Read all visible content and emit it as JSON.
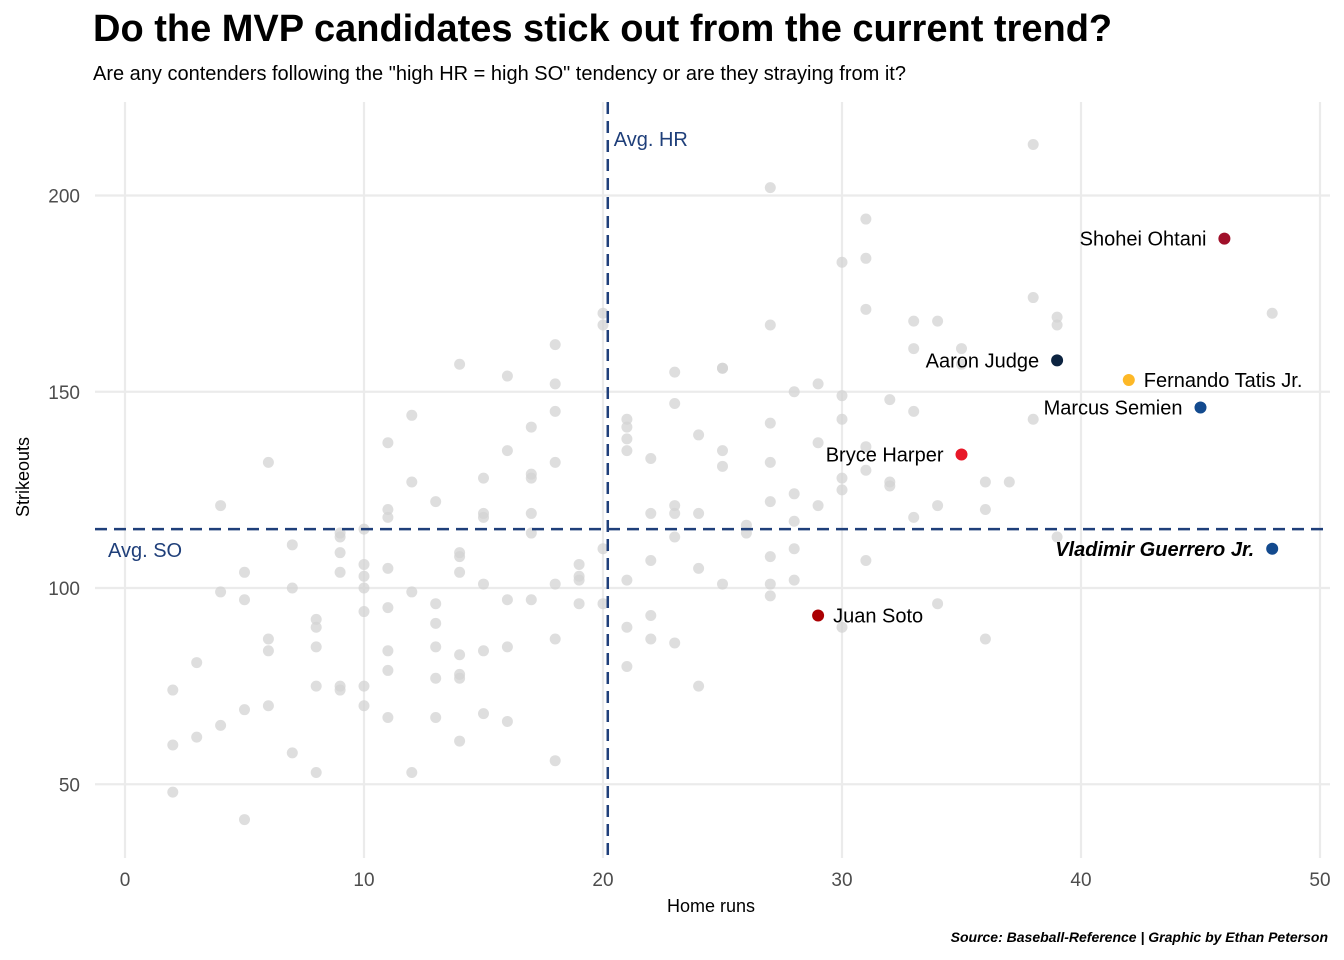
{
  "chart_data": {
    "type": "scatter",
    "title": "Do the MVP candidates stick out from the current trend?",
    "subtitle": "Are any contenders following the \"high HR = high SO\" tendency or are they straying from it?",
    "xlabel": "Home runs",
    "ylabel": "Strikeouts",
    "xlim": [
      0,
      50
    ],
    "ylim": [
      35,
      222
    ],
    "x_ticks": [
      0,
      10,
      20,
      30,
      40,
      50
    ],
    "y_ticks": [
      50,
      100,
      150,
      200
    ],
    "grid": true,
    "caption": "Source: Baseball-Reference | Graphic by Ethan Peterson",
    "reference_lines": [
      {
        "axis": "x",
        "value": 20.2,
        "label": "Avg. HR",
        "color": "#1f3f7a",
        "style": "dashed"
      },
      {
        "axis": "y",
        "value": 115,
        "label": "Avg. SO",
        "color": "#1f3f7a",
        "style": "dashed"
      }
    ],
    "background_series": {
      "color": "#d3d3d3",
      "points": [
        [
          2,
          74
        ],
        [
          2,
          60
        ],
        [
          2,
          48
        ],
        [
          3,
          81
        ],
        [
          3,
          62
        ],
        [
          4,
          121
        ],
        [
          4,
          99
        ],
        [
          4,
          65
        ],
        [
          5,
          104
        ],
        [
          5,
          97
        ],
        [
          5,
          69
        ],
        [
          5,
          41
        ],
        [
          6,
          132
        ],
        [
          6,
          87
        ],
        [
          6,
          84
        ],
        [
          6,
          70
        ],
        [
          7,
          111
        ],
        [
          7,
          100
        ],
        [
          7,
          58
        ],
        [
          8,
          92
        ],
        [
          8,
          90
        ],
        [
          8,
          85
        ],
        [
          8,
          75
        ],
        [
          8,
          53
        ],
        [
          9,
          114
        ],
        [
          9,
          113
        ],
        [
          9,
          109
        ],
        [
          9,
          104
        ],
        [
          9,
          75
        ],
        [
          9,
          74
        ],
        [
          10,
          115
        ],
        [
          10,
          106
        ],
        [
          10,
          103
        ],
        [
          10,
          100
        ],
        [
          10,
          94
        ],
        [
          10,
          75
        ],
        [
          10,
          70
        ],
        [
          11,
          137
        ],
        [
          11,
          120
        ],
        [
          11,
          118
        ],
        [
          11,
          105
        ],
        [
          11,
          95
        ],
        [
          11,
          84
        ],
        [
          11,
          79
        ],
        [
          11,
          67
        ],
        [
          12,
          144
        ],
        [
          12,
          127
        ],
        [
          12,
          99
        ],
        [
          12,
          53
        ],
        [
          13,
          122
        ],
        [
          13,
          96
        ],
        [
          13,
          91
        ],
        [
          13,
          85
        ],
        [
          13,
          77
        ],
        [
          13,
          67
        ],
        [
          14,
          157
        ],
        [
          14,
          109
        ],
        [
          14,
          108
        ],
        [
          14,
          104
        ],
        [
          14,
          83
        ],
        [
          14,
          78
        ],
        [
          14,
          77
        ],
        [
          14,
          61
        ],
        [
          15,
          128
        ],
        [
          15,
          119
        ],
        [
          15,
          118
        ],
        [
          15,
          101
        ],
        [
          15,
          84
        ],
        [
          15,
          68
        ],
        [
          16,
          154
        ],
        [
          16,
          135
        ],
        [
          16,
          97
        ],
        [
          16,
          85
        ],
        [
          16,
          66
        ],
        [
          17,
          141
        ],
        [
          17,
          129
        ],
        [
          17,
          128
        ],
        [
          17,
          119
        ],
        [
          17,
          114
        ],
        [
          17,
          97
        ],
        [
          18,
          162
        ],
        [
          18,
          152
        ],
        [
          18,
          145
        ],
        [
          18,
          132
        ],
        [
          18,
          101
        ],
        [
          18,
          87
        ],
        [
          18,
          56
        ],
        [
          19,
          106
        ],
        [
          19,
          103
        ],
        [
          19,
          102
        ],
        [
          19,
          96
        ],
        [
          20,
          170
        ],
        [
          20,
          167
        ],
        [
          20,
          110
        ],
        [
          20,
          96
        ],
        [
          21,
          143
        ],
        [
          21,
          141
        ],
        [
          21,
          138
        ],
        [
          21,
          135
        ],
        [
          21,
          102
        ],
        [
          21,
          90
        ],
        [
          21,
          80
        ],
        [
          22,
          133
        ],
        [
          22,
          119
        ],
        [
          22,
          107
        ],
        [
          22,
          93
        ],
        [
          22,
          87
        ],
        [
          23,
          155
        ],
        [
          23,
          147
        ],
        [
          23,
          121
        ],
        [
          23,
          119
        ],
        [
          23,
          113
        ],
        [
          23,
          86
        ],
        [
          24,
          139
        ],
        [
          24,
          119
        ],
        [
          24,
          105
        ],
        [
          24,
          75
        ],
        [
          25,
          156
        ],
        [
          25,
          156
        ],
        [
          25,
          135
        ],
        [
          25,
          131
        ],
        [
          25,
          101
        ],
        [
          26,
          116
        ],
        [
          26,
          114
        ],
        [
          27,
          202
        ],
        [
          27,
          167
        ],
        [
          27,
          142
        ],
        [
          27,
          132
        ],
        [
          27,
          122
        ],
        [
          27,
          108
        ],
        [
          27,
          101
        ],
        [
          27,
          98
        ],
        [
          28,
          150
        ],
        [
          28,
          124
        ],
        [
          28,
          117
        ],
        [
          28,
          110
        ],
        [
          28,
          102
        ],
        [
          29,
          152
        ],
        [
          29,
          137
        ],
        [
          29,
          121
        ],
        [
          30,
          183
        ],
        [
          30,
          149
        ],
        [
          30,
          143
        ],
        [
          30,
          128
        ],
        [
          30,
          125
        ],
        [
          30,
          90
        ],
        [
          31,
          194
        ],
        [
          31,
          184
        ],
        [
          31,
          171
        ],
        [
          31,
          136
        ],
        [
          31,
          130
        ],
        [
          31,
          107
        ],
        [
          32,
          148
        ],
        [
          32,
          127
        ],
        [
          32,
          126
        ],
        [
          33,
          168
        ],
        [
          33,
          161
        ],
        [
          33,
          145
        ],
        [
          33,
          118
        ],
        [
          34,
          168
        ],
        [
          34,
          121
        ],
        [
          34,
          96
        ],
        [
          35,
          161
        ],
        [
          35,
          157
        ],
        [
          36,
          127
        ],
        [
          36,
          120
        ],
        [
          36,
          87
        ],
        [
          37,
          127
        ],
        [
          38,
          213
        ],
        [
          38,
          174
        ],
        [
          38,
          143
        ],
        [
          39,
          169
        ],
        [
          39,
          167
        ],
        [
          39,
          113
        ],
        [
          48,
          170
        ]
      ]
    },
    "highlighted_points": [
      {
        "name": "Shohei Ohtani",
        "x": 46,
        "y": 189,
        "color": "#a0102a",
        "label_side": "left"
      },
      {
        "name": "Aaron Judge",
        "x": 39,
        "y": 158,
        "color": "#0c2340",
        "label_side": "left"
      },
      {
        "name": "Fernando Tatis Jr.",
        "x": 42,
        "y": 153,
        "color": "#fdb827",
        "label_side": "right"
      },
      {
        "name": "Marcus Semien",
        "x": 45,
        "y": 146,
        "color": "#134a8e",
        "label_side": "left"
      },
      {
        "name": "Bryce Harper",
        "x": 35,
        "y": 134,
        "color": "#e81828",
        "label_side": "left"
      },
      {
        "name": "Vladimir Guerrero Jr.",
        "x": 48,
        "y": 110,
        "color": "#134a8e",
        "label_side": "left",
        "bold_italic": true
      },
      {
        "name": "Juan Soto",
        "x": 29,
        "y": 93,
        "color": "#ab0003",
        "label_side": "right"
      }
    ]
  }
}
